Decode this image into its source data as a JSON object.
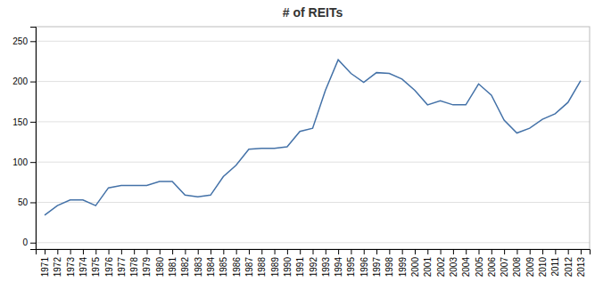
{
  "chart_data": {
    "type": "line",
    "title": "# of REITs",
    "x": [
      1971,
      1972,
      1973,
      1974,
      1975,
      1976,
      1977,
      1978,
      1979,
      1980,
      1981,
      1982,
      1983,
      1984,
      1985,
      1986,
      1987,
      1988,
      1989,
      1990,
      1991,
      1992,
      1993,
      1994,
      1995,
      1996,
      1997,
      1998,
      1999,
      2000,
      2001,
      2002,
      2003,
      2004,
      2005,
      2006,
      2007,
      2008,
      2009,
      2010,
      2011,
      2012,
      2013
    ],
    "values": [
      34,
      46,
      53,
      53,
      46,
      68,
      71,
      71,
      71,
      76,
      76,
      59,
      57,
      59,
      82,
      96,
      116,
      117,
      117,
      119,
      138,
      142,
      189,
      227,
      210,
      199,
      211,
      210,
      203,
      189,
      171,
      176,
      171,
      171,
      197,
      183,
      152,
      136,
      142,
      153,
      160,
      174,
      201
    ],
    "color": "#4472a8",
    "xlim": [
      1970.3,
      2013.7
    ],
    "xticks": [
      1971,
      1972,
      1973,
      1974,
      1975,
      1976,
      1977,
      1978,
      1979,
      1980,
      1981,
      1982,
      1983,
      1984,
      1985,
      1986,
      1987,
      1988,
      1989,
      1990,
      1991,
      1992,
      1993,
      1994,
      1995,
      1996,
      1997,
      1998,
      1999,
      2000,
      2001,
      2002,
      2003,
      2004,
      2005,
      2006,
      2007,
      2008,
      2009,
      2010,
      2011,
      2012,
      2013
    ],
    "ylim": [
      -8,
      268
    ],
    "yticks": [
      0,
      50,
      100,
      150,
      200,
      250
    ],
    "grid": true
  }
}
